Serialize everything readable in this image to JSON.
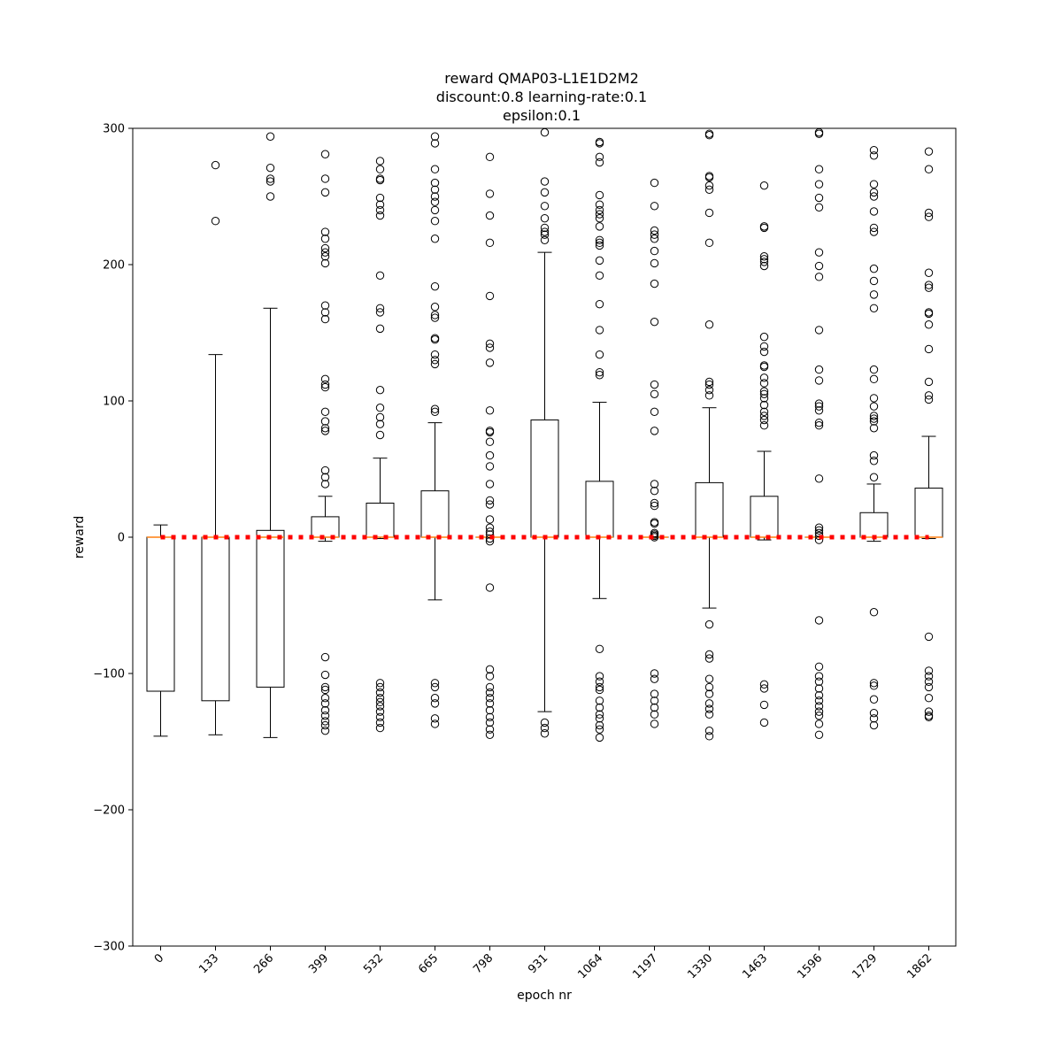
{
  "chart_data": {
    "type": "boxplot",
    "title": [
      "reward QMAP03-L1E1D2M2",
      "discount:0.8 learning-rate:0.1",
      "epsilon:0.1"
    ],
    "xlabel": "epoch nr",
    "ylabel": "reward",
    "ylim": [
      -300,
      300
    ],
    "yticks": [
      -300,
      -200,
      -100,
      0,
      100,
      200,
      300
    ],
    "ytick_labels": [
      "−300",
      "−200",
      "−100",
      "0",
      "100",
      "200",
      "300"
    ],
    "categories": [
      "0",
      "133",
      "266",
      "399",
      "532",
      "665",
      "798",
      "931",
      "1064",
      "1197",
      "1330",
      "1463",
      "1596",
      "1729",
      "1862"
    ],
    "reference_line": {
      "y": 0,
      "color": "#ff0000",
      "style": "dotted"
    },
    "colors": {
      "box": "#000000",
      "median": "#ff7f0e",
      "reference": "#ff0000"
    },
    "boxes": [
      {
        "q1": -113,
        "median": 0,
        "q3": 0,
        "whislo": -146,
        "whishi": 9,
        "fliers": []
      },
      {
        "q1": -120,
        "median": 0,
        "q3": 0,
        "whislo": -145,
        "whishi": 134,
        "fliers": [
          273,
          232
        ]
      },
      {
        "q1": -110,
        "median": 0,
        "q3": 5,
        "whislo": -147,
        "whishi": 168,
        "fliers": [
          294,
          271,
          263,
          261,
          250
        ]
      },
      {
        "q1": 0,
        "median": 0,
        "q3": 15,
        "whislo": -3,
        "whishi": 30,
        "fliers": [
          281,
          263,
          253,
          224,
          219,
          212,
          209,
          206,
          201,
          170,
          165,
          160,
          116,
          112,
          110,
          92,
          85,
          80,
          78,
          49,
          44,
          39,
          -88,
          -101,
          -110,
          -112,
          -118,
          -122,
          -127,
          -131,
          -135,
          -138,
          -142
        ]
      },
      {
        "q1": 0,
        "median": 0,
        "q3": 25,
        "whislo": -1,
        "whishi": 58,
        "fliers": [
          276,
          270,
          263,
          262,
          249,
          244,
          240,
          236,
          192,
          168,
          165,
          153,
          108,
          95,
          88,
          83,
          75,
          -107,
          -110,
          -114,
          -118,
          -121,
          -124,
          -128,
          -132,
          -136,
          -140
        ]
      },
      {
        "q1": 0,
        "median": 0,
        "q3": 34,
        "whislo": -46,
        "whishi": 84,
        "fliers": [
          294,
          289,
          270,
          260,
          255,
          250,
          246,
          240,
          232,
          219,
          184,
          169,
          163,
          161,
          146,
          145,
          134,
          130,
          127,
          94,
          92,
          -107,
          -110,
          -118,
          -122,
          -133,
          -137
        ]
      },
      {
        "q1": 0,
        "median": 0,
        "q3": 0,
        "whislo": 0,
        "whishi": 0,
        "fliers": [
          279,
          252,
          236,
          216,
          177,
          142,
          139,
          128,
          93,
          78,
          77,
          70,
          60,
          52,
          39,
          27,
          24,
          13,
          7,
          4,
          2,
          -1,
          -3,
          -37,
          -97,
          -102,
          -110,
          -114,
          -118,
          -122,
          -127,
          -132,
          -136,
          -141,
          -145
        ]
      },
      {
        "q1": 0,
        "median": 0,
        "q3": 86,
        "whislo": -128,
        "whishi": 209,
        "fliers": [
          297,
          261,
          253,
          243,
          234,
          227,
          224,
          222,
          218,
          -136,
          -140,
          -144
        ]
      },
      {
        "q1": 0,
        "median": 0,
        "q3": 41,
        "whislo": -45,
        "whishi": 99,
        "fliers": [
          290,
          289,
          279,
          275,
          251,
          244,
          240,
          237,
          234,
          228,
          218,
          216,
          214,
          203,
          192,
          171,
          152,
          134,
          121,
          119,
          -82,
          -102,
          -106,
          -110,
          -112,
          -120,
          -125,
          -130,
          -133,
          -138,
          -141,
          -147
        ]
      },
      {
        "q1": 0,
        "median": 0,
        "q3": 0,
        "whislo": 0,
        "whishi": 0,
        "fliers": [
          260,
          243,
          225,
          222,
          219,
          210,
          201,
          186,
          158,
          112,
          105,
          92,
          78,
          39,
          34,
          25,
          23,
          11,
          10,
          3,
          2,
          1,
          0,
          -100,
          -104,
          -115,
          -120,
          -125,
          -130,
          -137
        ]
      },
      {
        "q1": 0,
        "median": 0,
        "q3": 40,
        "whislo": -52,
        "whishi": 95,
        "fliers": [
          296,
          295,
          265,
          264,
          258,
          255,
          238,
          216,
          156,
          114,
          112,
          108,
          104,
          -64,
          -86,
          -89,
          -104,
          -110,
          -115,
          -122,
          -126,
          -130,
          -142,
          -146
        ]
      },
      {
        "q1": 0,
        "median": 0,
        "q3": 30,
        "whislo": -2,
        "whishi": 63,
        "fliers": [
          258,
          228,
          227,
          206,
          204,
          202,
          199,
          147,
          140,
          136,
          126,
          125,
          117,
          113,
          107,
          105,
          102,
          97,
          92,
          89,
          86,
          82,
          -108,
          -111,
          -123,
          -136
        ]
      },
      {
        "q1": 0,
        "median": 0,
        "q3": 0,
        "whislo": 0,
        "whishi": 0,
        "fliers": [
          297,
          296,
          270,
          259,
          249,
          242,
          209,
          199,
          191,
          152,
          123,
          115,
          98,
          96,
          93,
          84,
          82,
          43,
          7,
          5,
          3,
          1,
          -2,
          -61,
          -95,
          -102,
          -106,
          -111,
          -116,
          -120,
          -124,
          -128,
          -131,
          -137,
          -145
        ]
      },
      {
        "q1": 0,
        "median": 0,
        "q3": 18,
        "whislo": -3,
        "whishi": 39,
        "fliers": [
          284,
          280,
          259,
          253,
          250,
          239,
          227,
          224,
          197,
          188,
          178,
          168,
          123,
          116,
          102,
          96,
          89,
          87,
          85,
          80,
          60,
          56,
          44,
          -55,
          -107,
          -109,
          -119,
          -129,
          -133,
          -138
        ]
      },
      {
        "q1": 0,
        "median": 0,
        "q3": 36,
        "whislo": -1,
        "whishi": 74,
        "fliers": [
          283,
          270,
          238,
          235,
          194,
          185,
          183,
          165,
          164,
          156,
          138,
          114,
          104,
          101,
          -73,
          -98,
          -102,
          -106,
          -110,
          -118,
          -128,
          -131,
          -132
        ]
      }
    ]
  }
}
